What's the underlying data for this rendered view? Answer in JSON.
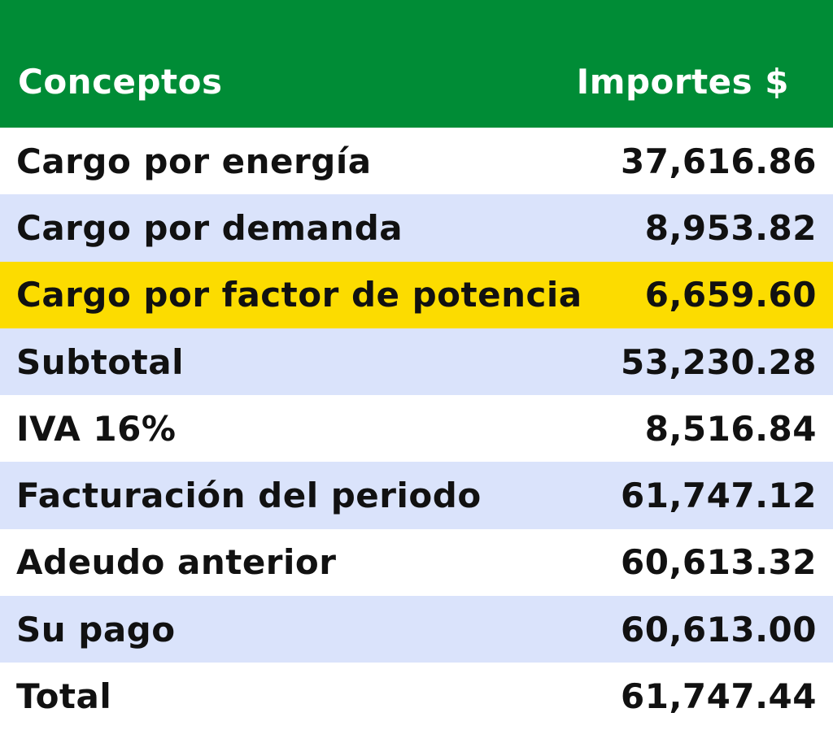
{
  "table": {
    "headers": {
      "concept": "Conceptos",
      "amount": "Importes $"
    },
    "colors": {
      "header_bg": "#008c36",
      "stripe": "#dae3fb",
      "highlight": "#fcdc00"
    },
    "rows": [
      {
        "concept": "Cargo por energía",
        "amount": "37,616.86"
      },
      {
        "concept": "Cargo por demanda",
        "amount": "8,953.82"
      },
      {
        "concept": "Cargo por factor de potencia",
        "amount": "6,659.60"
      },
      {
        "concept": "Subtotal",
        "amount": "53,230.28"
      },
      {
        "concept": "IVA 16%",
        "amount": "8,516.84"
      },
      {
        "concept": "Facturación del periodo",
        "amount": "61,747.12"
      },
      {
        "concept": "Adeudo anterior",
        "amount": "60,613.32"
      },
      {
        "concept": "Su pago",
        "amount": "60,613.00"
      },
      {
        "concept": "Total",
        "amount": "61,747.44"
      }
    ]
  }
}
